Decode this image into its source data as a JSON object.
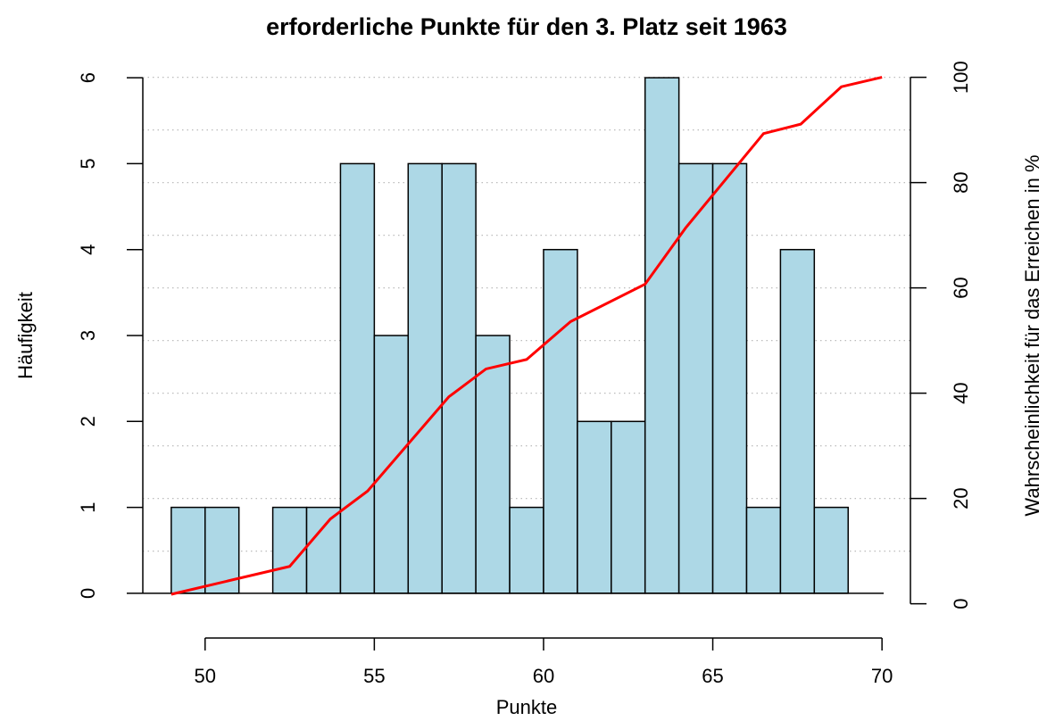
{
  "chart_data": {
    "type": "histogram",
    "title": "erforderliche Punkte für den 3. Platz seit 1963",
    "xlabel": "Punkte",
    "ylabel": "Häufigkeit",
    "y2label": "Wahrscheinlichkeit für das Erreichen in %",
    "bins": [
      49,
      50,
      51,
      52,
      53,
      54,
      55,
      56,
      57,
      58,
      59,
      60,
      61,
      62,
      63,
      64,
      65,
      66,
      67,
      68,
      69
    ],
    "counts": [
      1,
      1,
      0,
      1,
      1,
      5,
      3,
      5,
      5,
      3,
      1,
      4,
      2,
      2,
      6,
      5,
      5,
      1,
      4,
      1
    ],
    "color": "#add8e6",
    "series": [
      {
        "type": "line",
        "axis": "y2",
        "color": "#ff0000",
        "x": [
          49,
          52.5,
          53.7,
          54.8,
          57.2,
          58.3,
          59.5,
          60.8,
          63.0,
          64.2,
          66.5,
          67.6,
          68.8,
          70
        ],
        "values": [
          1.8,
          7.1,
          16.1,
          21.4,
          39.3,
          44.6,
          46.4,
          53.6,
          60.7,
          71.4,
          89.3,
          91.1,
          98.2,
          100
        ]
      }
    ],
    "xlim": [
      48.16,
      70.84
    ],
    "xticks": [
      50,
      55,
      60,
      65,
      70
    ],
    "ylim": [
      -0.24,
      6.24
    ],
    "yticks": [
      0,
      1,
      2,
      3,
      4,
      5,
      6
    ],
    "y2lim": [
      -1.93,
      103.83
    ],
    "y2ticks": [
      0,
      20,
      40,
      60,
      80,
      100
    ],
    "y2grid": [
      10,
      20,
      30,
      40,
      50,
      60,
      70,
      80,
      90,
      100
    ]
  }
}
